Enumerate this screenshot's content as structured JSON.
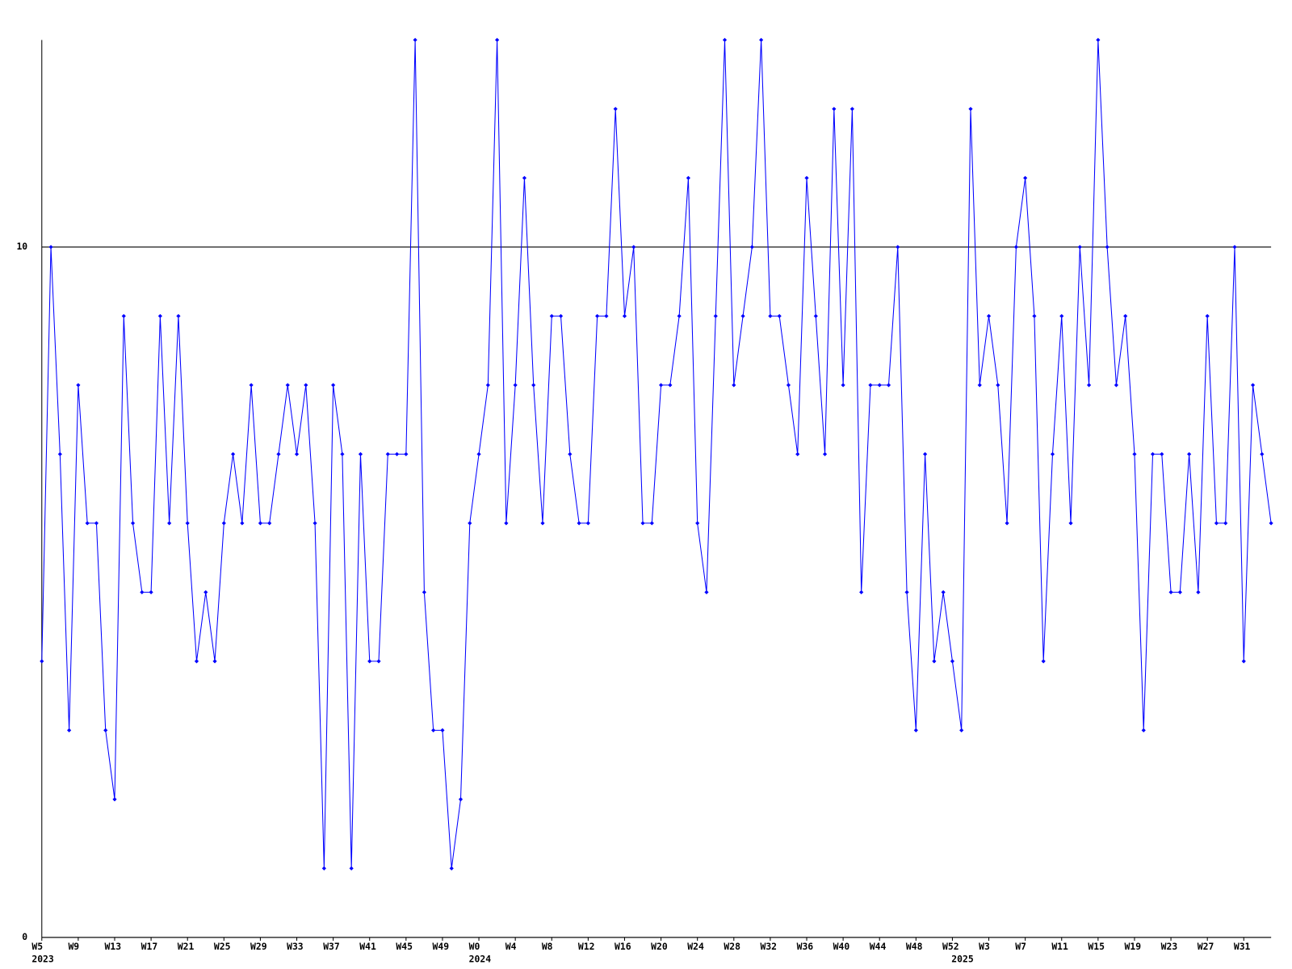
{
  "chart_data": {
    "type": "line",
    "color": "#0000ff",
    "grid": true,
    "ylim": [
      0,
      13
    ],
    "yticks": [
      0,
      10
    ],
    "categories": [
      "W5",
      null,
      null,
      null,
      "W9",
      null,
      null,
      null,
      "W13",
      null,
      null,
      null,
      "W17",
      null,
      null,
      null,
      "W21",
      null,
      null,
      null,
      "W25",
      null,
      null,
      null,
      "W29",
      null,
      null,
      null,
      "W33",
      null,
      null,
      null,
      "W37",
      null,
      null,
      null,
      "W41",
      null,
      null,
      null,
      "W45",
      null,
      null,
      null,
      "W49",
      null,
      null,
      null,
      "W0",
      null,
      null,
      null,
      "W4",
      null,
      null,
      null,
      "W8",
      null,
      null,
      null,
      "W12",
      null,
      null,
      null,
      "W16",
      null,
      null,
      null,
      "W20",
      null,
      null,
      null,
      "W24",
      null,
      null,
      null,
      "W28",
      null,
      null,
      null,
      "W32",
      null,
      null,
      null,
      "W36",
      null,
      null,
      null,
      "W40",
      null,
      null,
      null,
      "W44",
      null,
      null,
      null,
      "W48",
      null,
      null,
      null,
      "W52",
      null,
      null,
      null,
      "W3",
      null,
      null,
      null,
      "W7",
      null,
      null,
      null,
      "W11",
      null,
      null,
      null,
      "W15",
      null,
      null,
      null,
      "W19",
      null,
      null,
      null,
      "W23",
      null,
      null,
      null,
      "W27",
      null,
      null,
      null,
      "W31",
      null,
      null,
      null
    ],
    "category_years": [
      "2023",
      null,
      null,
      null,
      null,
      null,
      null,
      null,
      null,
      null,
      null,
      null,
      null,
      null,
      null,
      null,
      null,
      null,
      null,
      null,
      null,
      null,
      null,
      null,
      null,
      null,
      null,
      null,
      null,
      null,
      null,
      null,
      null,
      null,
      null,
      null,
      null,
      null,
      null,
      null,
      null,
      null,
      null,
      null,
      null,
      null,
      null,
      null,
      "2024",
      null,
      null,
      null,
      null,
      null,
      null,
      null,
      null,
      null,
      null,
      null,
      null,
      null,
      null,
      null,
      null,
      null,
      null,
      null,
      null,
      null,
      null,
      null,
      null,
      null,
      null,
      null,
      null,
      null,
      null,
      null,
      null,
      null,
      null,
      null,
      null,
      null,
      null,
      null,
      null,
      null,
      null,
      null,
      null,
      null,
      null,
      null,
      null,
      null,
      null,
      null,
      null,
      "2025",
      null,
      null,
      null,
      null,
      null,
      null,
      null,
      null,
      null,
      null,
      null,
      null,
      null,
      null,
      null,
      null,
      null,
      null,
      null,
      null,
      null,
      null,
      null,
      null,
      null,
      null,
      null,
      null,
      null,
      null,
      null,
      null,
      null,
      null
    ],
    "values": [
      4,
      10,
      7,
      3,
      8,
      6,
      6,
      3,
      2,
      9,
      6,
      5,
      5,
      9,
      6,
      9,
      6,
      4,
      5,
      4,
      6,
      7,
      6,
      8,
      6,
      6,
      7,
      8,
      7,
      8,
      6,
      1,
      8,
      7,
      1,
      7,
      4,
      4,
      7,
      7,
      7,
      13,
      5,
      3,
      3,
      1,
      2,
      6,
      7,
      8,
      13,
      6,
      8,
      11,
      8,
      6,
      9,
      9,
      7,
      6,
      6,
      9,
      9,
      12,
      9,
      10,
      6,
      6,
      8,
      8,
      9,
      11,
      6,
      5,
      9,
      13,
      8,
      9,
      10,
      13,
      9,
      9,
      8,
      7,
      11,
      9,
      7,
      12,
      8,
      12,
      5,
      8,
      8,
      8,
      10,
      5,
      3,
      7,
      4,
      5,
      4,
      3,
      12,
      8,
      9,
      8,
      6,
      10,
      11,
      9,
      4,
      7,
      9,
      6,
      10,
      8,
      13,
      10,
      8,
      9,
      7,
      3,
      7,
      7,
      5,
      5,
      7,
      5,
      9,
      6,
      6,
      10,
      4,
      8,
      7,
      6
    ]
  }
}
